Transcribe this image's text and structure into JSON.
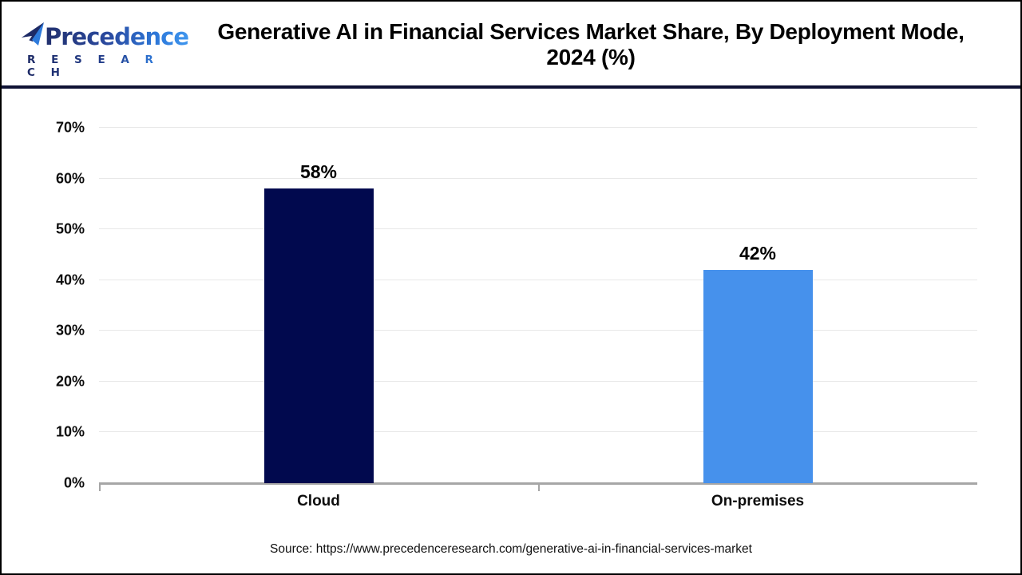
{
  "logo": {
    "brand": "Precedence",
    "subbrand": "R E S E A R C H",
    "icon": "paper-plane-pinwheel",
    "colors": {
      "navy": "#22306e",
      "blue": "#2e7bdc",
      "light_blue": "#3f96ee"
    }
  },
  "header": {
    "title_line1": "Generative AI in Financial Services Market Share, By Deployment Mode,",
    "title_line2": "2024 (%)"
  },
  "chart_data": {
    "type": "bar",
    "title": "Generative AI in Financial Services Market Share, By Deployment Mode, 2024 (%)",
    "categories": [
      "Cloud",
      "On-premises"
    ],
    "values": [
      58,
      42
    ],
    "value_labels": [
      "58%",
      "42%"
    ],
    "bar_colors": [
      "#01094e",
      "#4691ec"
    ],
    "xlabel": "",
    "ylabel": "",
    "ylim": [
      0,
      70
    ],
    "yticks": [
      "0%",
      "10%",
      "20%",
      "30%",
      "40%",
      "50%",
      "60%",
      "70%"
    ],
    "grid": true,
    "legend": false,
    "gridline_color": "#e8e8e8",
    "axis_color": "#a6a6a6"
  },
  "footer": {
    "source": "Source: https://www.precedenceresearch.com/generative-ai-in-financial-services-market"
  }
}
